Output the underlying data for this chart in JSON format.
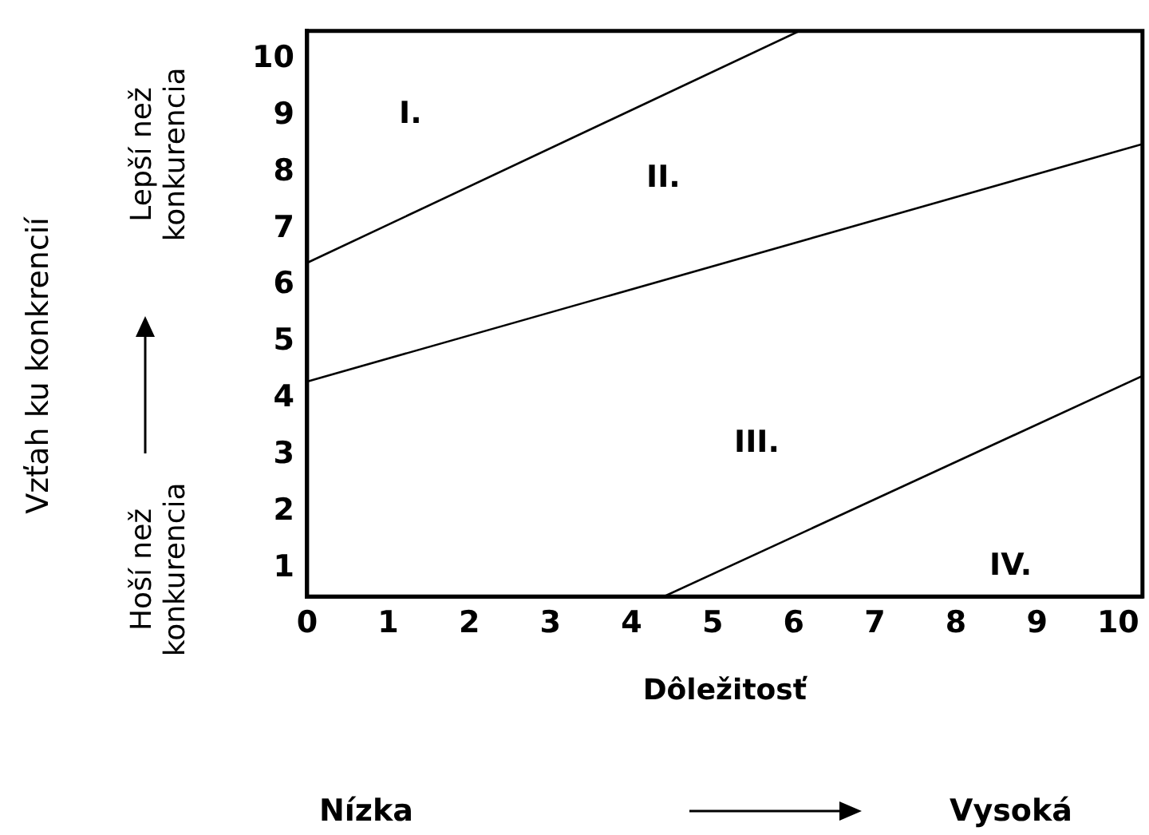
{
  "chart_data": {
    "type": "line",
    "xlabel": "Dôležitosť",
    "xlim": [
      0,
      10.3
    ],
    "ylim": [
      0.5,
      10.5
    ],
    "xticks": [
      0,
      1,
      2,
      3,
      4,
      5,
      6,
      7,
      8,
      9,
      10
    ],
    "yticks": [
      1,
      2,
      3,
      4,
      5,
      6,
      7,
      8,
      9,
      10
    ],
    "grid": false,
    "legend": false,
    "marker": "none",
    "line_style": "solid",
    "series": [
      {
        "color": "#000000",
        "x": [
          0,
          6.07
        ],
        "values": [
          6.4,
          10.5
        ]
      },
      {
        "color": "#000000",
        "x": [
          0,
          10.3
        ],
        "values": [
          4.3,
          8.5
        ]
      },
      {
        "color": "#000000",
        "x": [
          4.4,
          10.3
        ],
        "values": [
          0.5,
          4.4
        ]
      }
    ],
    "annotations": [
      "I.",
      "II.",
      "III.",
      "IV.",
      "Vzťah ku konkrencií",
      "Lepší než konkurencia",
      "Hoší než konkurencia",
      "Nízka",
      "Vysoká"
    ]
  }
}
